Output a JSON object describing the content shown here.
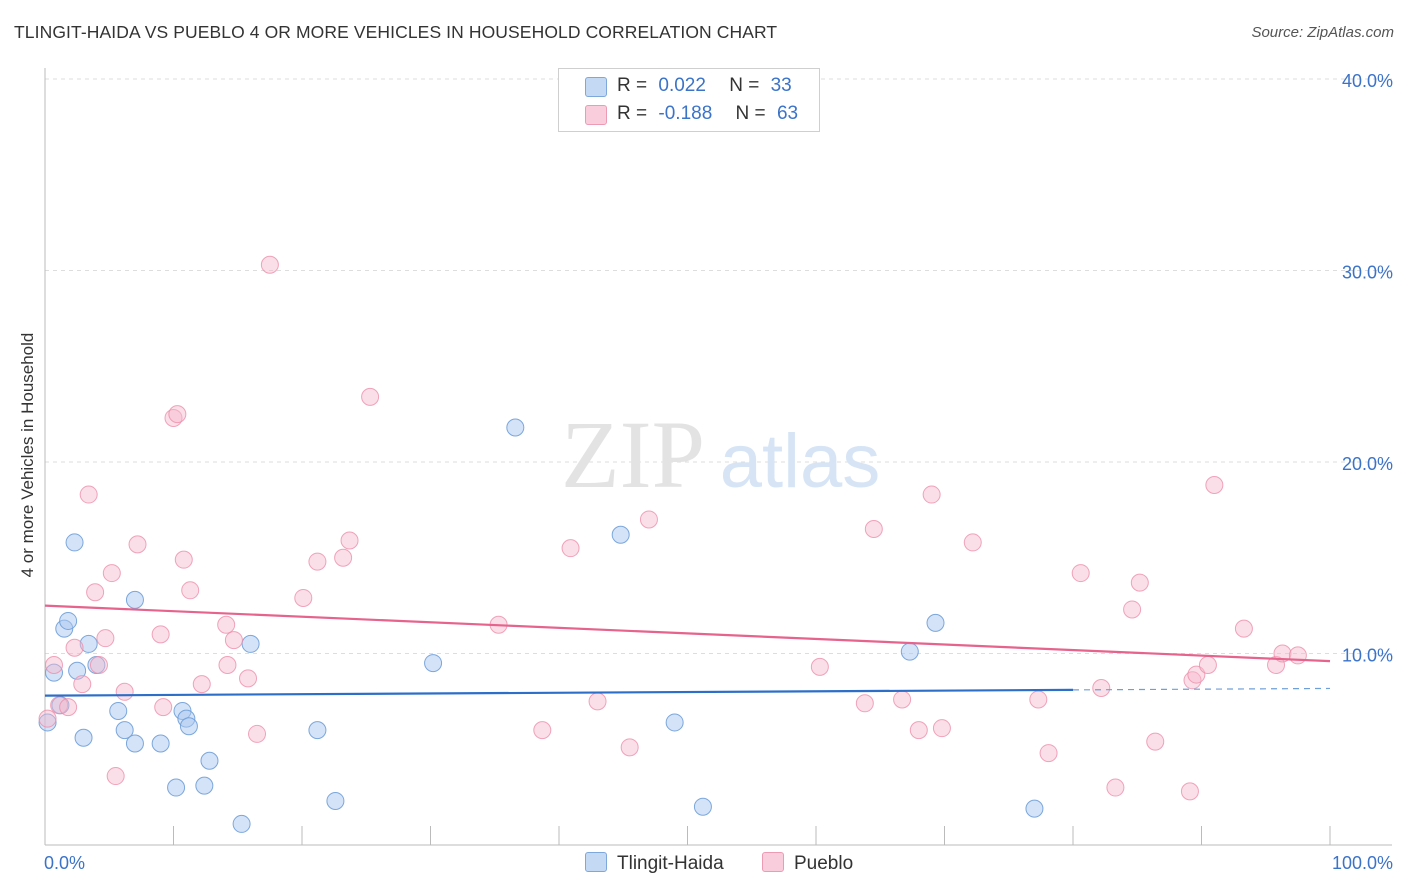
{
  "title": "TLINGIT-HAIDA VS PUEBLO 4 OR MORE VEHICLES IN HOUSEHOLD CORRELATION CHART",
  "source": "Source: ZipAtlas.com",
  "watermark": {
    "zip": "ZIP",
    "atlas": "atlas"
  },
  "legend": {
    "rows": [
      {
        "r_label": "R =",
        "r_value": "0.022",
        "n_label": "N =",
        "n_value": "33"
      },
      {
        "r_label": "R =",
        "r_value": "-0.188",
        "n_label": "N =",
        "n_value": "63"
      }
    ]
  },
  "bottom_legend": {
    "series1": "Tlingit-Haida",
    "series2": "Pueblo"
  },
  "colors": {
    "blue_fill": "#a9c8f0",
    "blue_stroke": "#6f9fd8",
    "blue_line": "#2d6fc8",
    "pink_fill": "#f7b8cb",
    "pink_stroke": "#ec8fab",
    "pink_line": "#e5638d",
    "tick_text": "#3b73c9",
    "grid": "#dddddd"
  },
  "chart_data": {
    "type": "scatter",
    "title": "TLINGIT-HAIDA VS PUEBLO 4 OR MORE VEHICLES IN HOUSEHOLD CORRELATION CHART",
    "xlabel": "",
    "ylabel": "4 or more Vehicles in Household",
    "xlim": [
      0,
      100
    ],
    "ylim": [
      0,
      40
    ],
    "x_tick_labels": [
      "0.0%",
      "100.0%"
    ],
    "y_ticks": [
      10,
      20,
      30,
      40
    ],
    "y_tick_labels": [
      "10.0%",
      "20.0%",
      "30.0%",
      "40.0%"
    ],
    "grid": true,
    "legend_position": "top-center",
    "series": [
      {
        "name": "Tlingit-Haida",
        "color": "#a9c8f0",
        "trend": {
          "x": [
            0,
            80
          ],
          "y": [
            7.8,
            8.1
          ],
          "dashed_extension_to_x": 100
        },
        "points": [
          [
            0.2,
            6.4
          ],
          [
            0.7,
            9.0
          ],
          [
            1.2,
            7.3
          ],
          [
            1.5,
            11.3
          ],
          [
            1.8,
            11.7
          ],
          [
            2.3,
            15.8
          ],
          [
            2.5,
            9.1
          ],
          [
            3.0,
            5.6
          ],
          [
            3.4,
            10.5
          ],
          [
            4.0,
            9.4
          ],
          [
            5.7,
            7.0
          ],
          [
            6.2,
            6.0
          ],
          [
            7.0,
            5.3
          ],
          [
            7.0,
            12.8
          ],
          [
            9.0,
            5.3
          ],
          [
            10.2,
            3.0
          ],
          [
            10.7,
            7.0
          ],
          [
            11.0,
            6.6
          ],
          [
            11.2,
            6.2
          ],
          [
            12.4,
            3.1
          ],
          [
            12.8,
            4.4
          ],
          [
            15.3,
            1.1
          ],
          [
            16.0,
            10.5
          ],
          [
            21.2,
            6.0
          ],
          [
            22.6,
            2.3
          ],
          [
            30.2,
            9.5
          ],
          [
            36.6,
            21.8
          ],
          [
            44.8,
            16.2
          ],
          [
            49.0,
            6.4
          ],
          [
            51.2,
            2.0
          ],
          [
            67.3,
            10.1
          ],
          [
            69.3,
            11.6
          ],
          [
            77.0,
            1.9
          ]
        ]
      },
      {
        "name": "Pueblo",
        "color": "#f7b8cb",
        "trend": {
          "x": [
            0,
            100
          ],
          "y": [
            12.5,
            9.6
          ]
        },
        "points": [
          [
            0.2,
            6.6
          ],
          [
            0.7,
            9.4
          ],
          [
            1.1,
            7.3
          ],
          [
            1.8,
            7.2
          ],
          [
            2.3,
            10.3
          ],
          [
            2.9,
            8.4
          ],
          [
            3.4,
            18.3
          ],
          [
            3.9,
            13.2
          ],
          [
            4.2,
            9.4
          ],
          [
            4.7,
            10.8
          ],
          [
            5.2,
            14.2
          ],
          [
            5.5,
            3.6
          ],
          [
            6.2,
            8.0
          ],
          [
            7.2,
            15.7
          ],
          [
            9.0,
            11.0
          ],
          [
            9.2,
            7.2
          ],
          [
            10.0,
            22.3
          ],
          [
            10.3,
            22.5
          ],
          [
            10.8,
            14.9
          ],
          [
            11.3,
            13.3
          ],
          [
            12.2,
            8.4
          ],
          [
            14.1,
            11.5
          ],
          [
            14.2,
            9.4
          ],
          [
            14.7,
            10.7
          ],
          [
            15.8,
            8.7
          ],
          [
            16.5,
            5.8
          ],
          [
            17.5,
            30.3
          ],
          [
            20.1,
            12.9
          ],
          [
            21.2,
            14.8
          ],
          [
            23.2,
            15.0
          ],
          [
            23.7,
            15.9
          ],
          [
            25.3,
            23.4
          ],
          [
            35.3,
            11.5
          ],
          [
            38.7,
            6.0
          ],
          [
            40.9,
            15.5
          ],
          [
            43.0,
            7.5
          ],
          [
            45.5,
            5.1
          ],
          [
            47.0,
            17.0
          ],
          [
            60.3,
            9.3
          ],
          [
            63.8,
            7.4
          ],
          [
            64.5,
            16.5
          ],
          [
            66.7,
            7.6
          ],
          [
            68.0,
            6.0
          ],
          [
            69.0,
            18.3
          ],
          [
            69.8,
            6.1
          ],
          [
            72.2,
            15.8
          ],
          [
            77.3,
            7.6
          ],
          [
            78.1,
            4.8
          ],
          [
            80.6,
            14.2
          ],
          [
            82.2,
            8.2
          ],
          [
            83.3,
            3.0
          ],
          [
            84.6,
            12.3
          ],
          [
            85.2,
            13.7
          ],
          [
            86.4,
            5.4
          ],
          [
            89.1,
            2.8
          ],
          [
            89.3,
            8.6
          ],
          [
            89.6,
            8.9
          ],
          [
            90.5,
            9.4
          ],
          [
            91.0,
            18.8
          ],
          [
            93.3,
            11.3
          ],
          [
            95.8,
            9.4
          ],
          [
            96.3,
            10.0
          ],
          [
            97.5,
            9.9
          ]
        ]
      }
    ]
  }
}
